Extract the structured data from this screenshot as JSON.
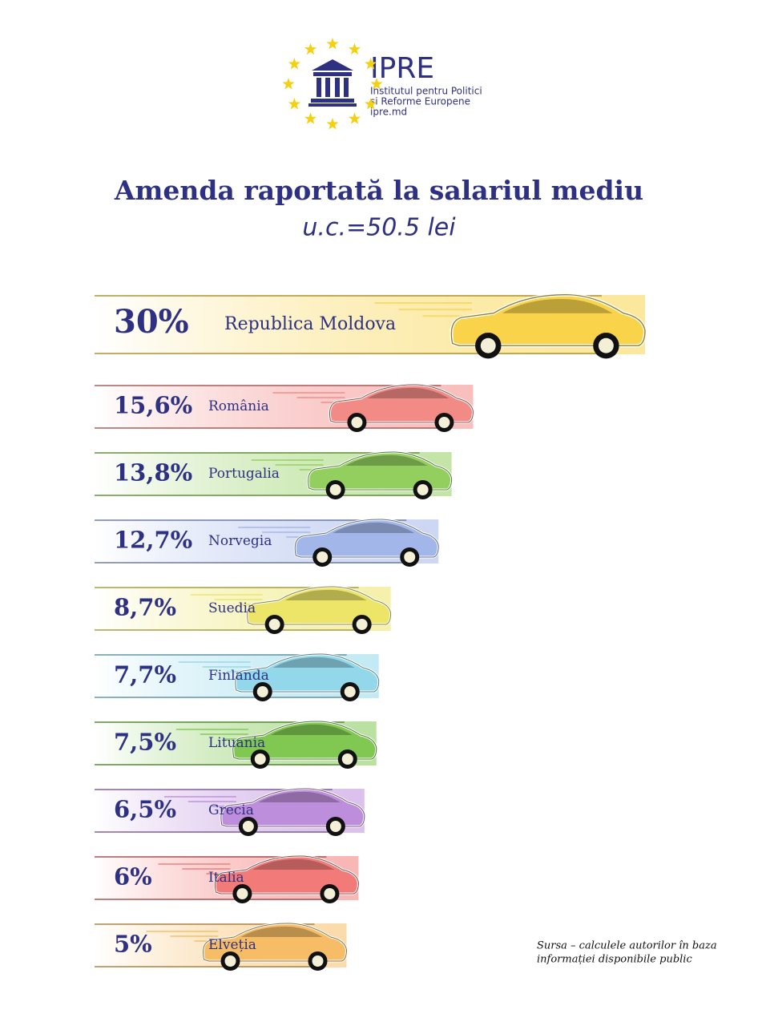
{
  "header": {
    "logo": "IPRE",
    "org_lines": [
      "Institutul pentru Politici",
      "și Reforme Europene",
      "ipre.md"
    ]
  },
  "chart_data": {
    "type": "bar",
    "orientation": "horizontal",
    "title": "Amenda raportată la salariul mediu",
    "subtitle": "u.c.=50.5 lei",
    "categories": [
      "Republica Moldova",
      "România",
      "Portugalia",
      "Norvegia",
      "Suedia",
      "Finlanda",
      "Lituania",
      "Grecia",
      "Italia",
      "Elveția"
    ],
    "values": [
      30,
      15.6,
      13.8,
      12.7,
      8.7,
      7.7,
      7.5,
      6.5,
      6,
      5
    ],
    "value_labels": [
      "30%",
      "15,6%",
      "13,8%",
      "12,7%",
      "8,7%",
      "7,7%",
      "7,5%",
      "6,5%",
      "6%",
      "5%"
    ],
    "colors": [
      "#f9d44a",
      "#f28a86",
      "#93cf5e",
      "#a3b6ea",
      "#ece567",
      "#92d8ea",
      "#80c851",
      "#bd8edb",
      "#f27a78",
      "#f7bd66"
    ],
    "source": [
      "Sursa – calculele autorilor în baza",
      "informației disponibile public"
    ]
  }
}
